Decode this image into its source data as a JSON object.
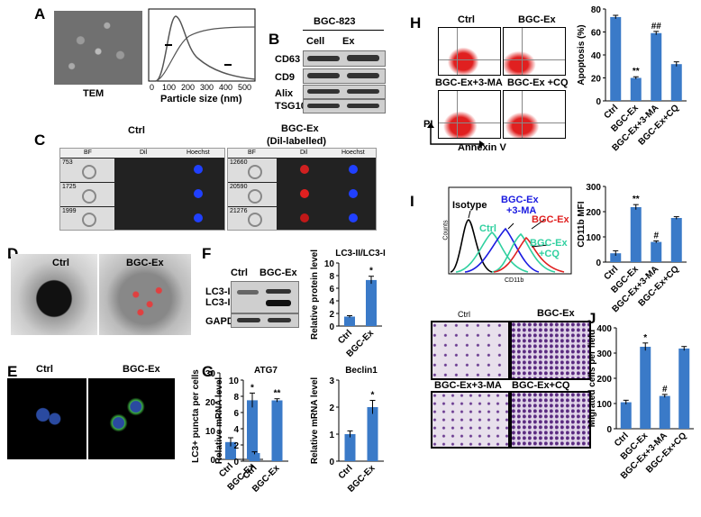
{
  "panels": {
    "A": {
      "label": "A",
      "tem_label": "TEM",
      "xlabel": "Particle size (nm)",
      "ticks": [
        "0",
        "100",
        "200",
        "300",
        "400",
        "500"
      ]
    },
    "B": {
      "label": "B",
      "title": "BGC-823",
      "col1": "Cell",
      "col2": "Ex",
      "rows": [
        "CD63",
        "CD9",
        "Alix",
        "TSG101"
      ]
    },
    "C": {
      "label": "C",
      "ctrl_title": "Ctrl",
      "ex_title": "BGC-Ex",
      "ex_subtitle": "(Dil-labelled)",
      "col_bf": "BF",
      "col_dil": "Dil",
      "col_hoechst": "Hoechst",
      "ctrl_ids": [
        "753",
        "1725",
        "1999"
      ],
      "ex_ids": [
        "12660",
        "20590",
        "21276"
      ]
    },
    "D": {
      "label": "D",
      "ctrl": "Ctrl",
      "ex": "BGC-Ex"
    },
    "E": {
      "label": "E",
      "ctrl": "Ctrl",
      "ex": "BGC-Ex",
      "ylabel": "LC3+ puncta per cells"
    },
    "F": {
      "label": "F",
      "col1": "Ctrl",
      "col2": "BGC-Ex",
      "row1": "LC3-I",
      "row2": "LC3-II",
      "row3": "GAPDH",
      "chart_title": "LC3-II/LC3-I",
      "ylabel": "Relative protein level"
    },
    "G": {
      "label": "G",
      "gene1": "ATG7",
      "gene2": "Beclin1",
      "ylabel": "Relative mRNA level"
    },
    "H": {
      "label": "H",
      "q1": "Ctrl",
      "q2": "BGC-Ex",
      "q3": "BGC-Ex+3-MA",
      "q4": "BGC-Ex +CQ",
      "xlabel": "Annexin V",
      "ylabel_flow": "PI",
      "ylabel": "Apoptosis (%)"
    },
    "I": {
      "label": "I",
      "isotype": "Isotype",
      "ctrl": "Ctrl",
      "ma": "BGC-Ex",
      "ma2": "+3-MA",
      "ex": "BGC-Ex",
      "cq": "BGC-Ex",
      "cq2": "+CQ",
      "counts": "Counts",
      "cd11b": "CD11b",
      "ylabel": "CD11b MFI"
    },
    "J": {
      "label": "J",
      "q1": "Ctrl",
      "q2": "BGC-Ex",
      "q3": "BGC-Ex+3-MA",
      "q4": "BGC-Ex+CQ",
      "ylabel": "Migrated cells per field"
    }
  },
  "chart_data": [
    {
      "type": "bar",
      "id": "E",
      "categories": [
        "Ctrl",
        "BGC-Ex"
      ],
      "values": [
        6,
        20.5
      ],
      "errors": [
        1.5,
        2.5
      ],
      "ylim": [
        0,
        30
      ],
      "yticks": [
        0,
        10,
        20,
        30
      ],
      "sig": [
        "",
        "*"
      ],
      "ylabel": "LC3+ puncta per cells"
    },
    {
      "type": "bar",
      "id": "F",
      "categories": [
        "Ctrl",
        "BGC-Ex"
      ],
      "values": [
        1.5,
        7.3
      ],
      "errors": [
        0.15,
        0.6
      ],
      "ylim": [
        0,
        10
      ],
      "yticks": [
        0,
        2,
        4,
        6,
        8,
        10
      ],
      "sig": [
        "",
        "*"
      ],
      "title": "LC3-II/LC3-I",
      "ylabel": "Relative protein level"
    },
    {
      "type": "bar",
      "id": "G1",
      "categories": [
        "Ctrl",
        "BGC-Ex"
      ],
      "values": [
        1,
        7.5
      ],
      "errors": [
        0.15,
        0.2
      ],
      "ylim": [
        0,
        10
      ],
      "yticks": [
        0,
        2,
        4,
        6,
        8,
        10
      ],
      "sig": [
        "",
        "**"
      ],
      "title": "ATG7",
      "ylabel": "Relative mRNA level"
    },
    {
      "type": "bar",
      "id": "G2",
      "categories": [
        "Ctrl",
        "BGC-Ex"
      ],
      "values": [
        1,
        2
      ],
      "errors": [
        0.12,
        0.25
      ],
      "ylim": [
        0,
        3
      ],
      "yticks": [
        0,
        1,
        2,
        3
      ],
      "sig": [
        "",
        "*"
      ],
      "title": "Beclin1",
      "ylabel": "Relative mRNA level"
    },
    {
      "type": "bar",
      "id": "H",
      "categories": [
        "Ctrl",
        "BGC-Ex",
        "BGC-Ex+3-MA",
        "BGC-Ex+CQ"
      ],
      "values": [
        73,
        20,
        59,
        32
      ],
      "errors": [
        1.5,
        1,
        1.5,
        2
      ],
      "ylim": [
        0,
        80
      ],
      "yticks": [
        0,
        20,
        40,
        60,
        80
      ],
      "sig": [
        "",
        "**",
        "##",
        ""
      ],
      "ylabel": "Apoptosis (%)"
    },
    {
      "type": "bar",
      "id": "I",
      "categories": [
        "Ctrl",
        "BGC-Ex",
        "BGC-Ex+3-MA",
        "BGC-Ex+CQ"
      ],
      "values": [
        35,
        218,
        80,
        175
      ],
      "errors": [
        10,
        10,
        4,
        5
      ],
      "ylim": [
        0,
        300
      ],
      "yticks": [
        0,
        100,
        200,
        300
      ],
      "sig": [
        "",
        "**",
        "#",
        ""
      ],
      "ylabel": "CD11b MFI"
    },
    {
      "type": "bar",
      "id": "J",
      "categories": [
        "Ctrl",
        "BGC-Ex",
        "BGC-Ex+3-MA",
        "BGC-Ex+CQ"
      ],
      "values": [
        105,
        325,
        130,
        318
      ],
      "errors": [
        8,
        15,
        6,
        8
      ],
      "ylim": [
        0,
        400
      ],
      "yticks": [
        0,
        100,
        200,
        300,
        400
      ],
      "sig": [
        "",
        "*",
        "#",
        ""
      ],
      "ylabel": "Migrated cells per field"
    }
  ],
  "colors": {
    "bar": "#3a7ac8",
    "red": "#e02020",
    "blue": "#1a1ae0",
    "green": "#30d0a0",
    "teal": "#20b8a8"
  }
}
